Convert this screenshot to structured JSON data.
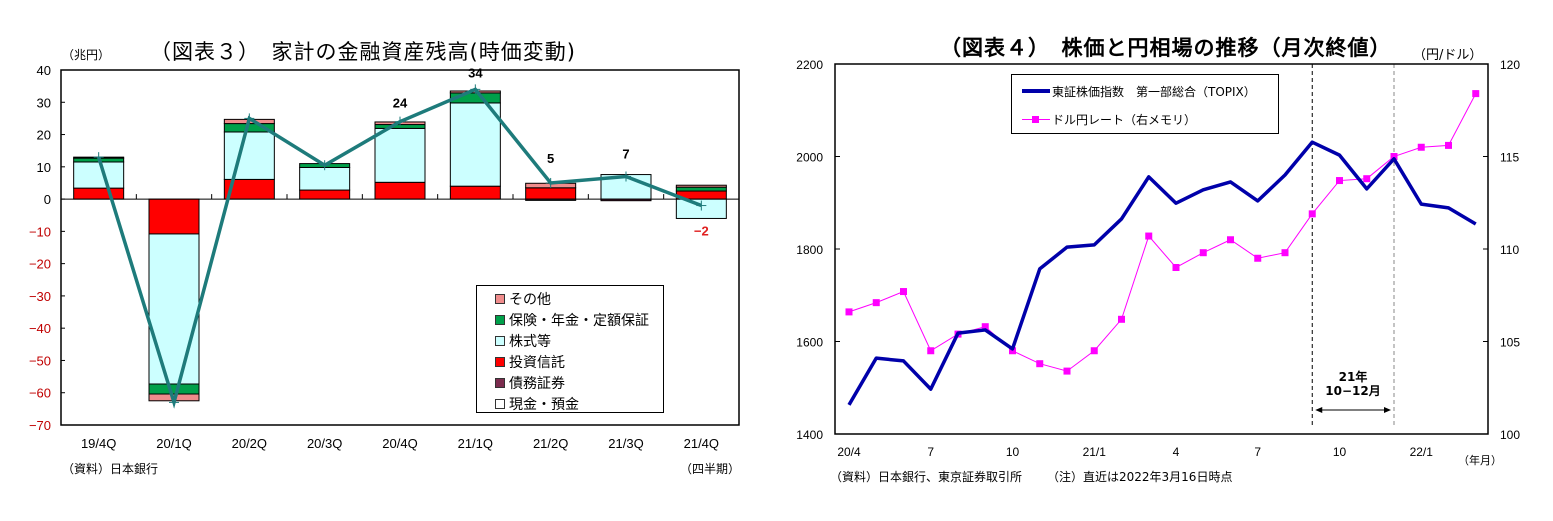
{
  "left": {
    "title": "（図表３）　家計の金融資産残高(時価変動)",
    "unit": "（兆円）",
    "source": "（資料）日本銀行",
    "period_label": "（四半期）"
  },
  "right": {
    "title": "（図表４）　株価と円相場の推移（月次終値）",
    "right_unit": "（円/ドル）",
    "xunit": "（年月）",
    "source": "（資料）日本銀行、東京証券取引所",
    "note": "（注）直近は2022年3月16日時点",
    "annotation_line1": "21年",
    "annotation_line2": "10−12月"
  },
  "chart_data": [
    {
      "type": "bar",
      "stacked": true,
      "title": "（図表３）　家計の金融資産残高(時価変動)",
      "ylabel": "（兆円）",
      "xlabel": "（四半期）",
      "ylim": [
        -70,
        40
      ],
      "yticks": [
        40,
        30,
        20,
        10,
        0,
        -10,
        -20,
        -30,
        -40,
        -50,
        -60,
        -70
      ],
      "categories": [
        "19/4Q",
        "20/1Q",
        "20/2Q",
        "20/3Q",
        "20/4Q",
        "21/1Q",
        "21/2Q",
        "21/3Q",
        "21/4Q"
      ],
      "series": [
        {
          "name": "現金・預金",
          "color": "#ffffff",
          "values": [
            0,
            0,
            0,
            0,
            0,
            0,
            0,
            0,
            0
          ]
        },
        {
          "name": "債務証券",
          "color": "#7b2c4e",
          "values": [
            0,
            0,
            0,
            0,
            0,
            0,
            -0.4,
            -0.5,
            0
          ]
        },
        {
          "name": "投資信託",
          "color": "#ff0000",
          "values": [
            3.4,
            -10.8,
            6.1,
            2.8,
            5.2,
            4.0,
            3.5,
            0,
            2.5
          ]
        },
        {
          "name": "株式等",
          "color": "#ccffff",
          "values": [
            8.1,
            -46.5,
            14.7,
            7.0,
            16.7,
            25.8,
            0,
            7.6,
            -6.0
          ]
        },
        {
          "name": "保険・年金・定額保証",
          "color": "#00a04a",
          "values": [
            1.2,
            -3.1,
            2.6,
            1.2,
            1.2,
            3.1,
            0,
            0,
            1.2
          ]
        },
        {
          "name": "その他",
          "color": "#f08c8c",
          "values": [
            0.3,
            -2.1,
            1.3,
            0,
            0.8,
            0.6,
            1.4,
            0,
            0.6
          ]
        }
      ],
      "total_line": {
        "name": "合計",
        "color": "#1e7b7b",
        "values": [
          13,
          -63,
          25,
          10.5,
          24,
          34,
          5,
          7,
          -2
        ]
      },
      "data_labels": [
        {
          "category": "20/4Q",
          "text": "24"
        },
        {
          "category": "21/1Q",
          "text": "34"
        },
        {
          "category": "21/2Q",
          "text": "5"
        },
        {
          "category": "21/3Q",
          "text": "7"
        },
        {
          "category": "21/4Q",
          "text": "−2",
          "color": "#e02020"
        }
      ],
      "legend": [
        "その他",
        "保険・年金・定額保証",
        "株式等",
        "投資信託",
        "債務証券",
        "現金・預金"
      ],
      "legend_position": "lower-right-inside"
    },
    {
      "type": "line",
      "title": "（図表４）　株価と円相場の推移（月次終値）",
      "xlabel": "（年月）",
      "ylabel_right": "（円/ドル）",
      "ylim": [
        1400,
        2200
      ],
      "ylim_right": [
        100,
        120
      ],
      "yticks": [
        2200,
        2000,
        1800,
        1600,
        1400
      ],
      "yticks_right": [
        120,
        115,
        110,
        105,
        100
      ],
      "x": [
        "20/4",
        "20/5",
        "20/6",
        "20/7",
        "20/8",
        "20/9",
        "20/10",
        "20/11",
        "20/12",
        "21/1",
        "21/2",
        "21/3",
        "21/4",
        "21/5",
        "21/6",
        "21/7",
        "21/8",
        "21/9",
        "21/10",
        "21/11",
        "21/12",
        "22/1",
        "22/2",
        "22/3"
      ],
      "xtick_labels": [
        {
          "index": 0,
          "label": "20/4"
        },
        {
          "index": 3,
          "label": "7"
        },
        {
          "index": 6,
          "label": "10"
        },
        {
          "index": 9,
          "label": "21/1"
        },
        {
          "index": 12,
          "label": "4"
        },
        {
          "index": 15,
          "label": "7"
        },
        {
          "index": 18,
          "label": "10"
        },
        {
          "index": 21,
          "label": "22/1"
        }
      ],
      "series": [
        {
          "name": "東証株価指数　第一部総合（TOPIX）",
          "axis": "left",
          "color": "#0000aa",
          "width": 3.5,
          "values": [
            1463,
            1564,
            1558,
            1497,
            1618,
            1625,
            1584,
            1757,
            1804,
            1809,
            1865,
            1956,
            1899,
            1928,
            1945,
            1904,
            1960,
            2031,
            2003,
            1930,
            1995,
            1897,
            1889,
            1854
          ]
        },
        {
          "name": "ドル円レート（右メモリ）",
          "axis": "right",
          "color": "#ff00ff",
          "marker": "square",
          "width": 1,
          "values": [
            106.6,
            107.1,
            107.7,
            104.5,
            105.4,
            105.8,
            104.5,
            103.8,
            103.4,
            104.5,
            106.2,
            110.7,
            109.0,
            109.8,
            110.5,
            109.5,
            109.8,
            111.9,
            113.7,
            113.8,
            115.0,
            115.5,
            115.6,
            118.4
          ]
        }
      ],
      "vlines": [
        {
          "index": 17,
          "style": "dashed",
          "color": "#000000"
        },
        {
          "index": 20,
          "style": "dashed",
          "color": "#888888"
        }
      ],
      "annotation": {
        "text": "21年 10−12月",
        "span": [
          17,
          20
        ]
      },
      "legend_position": "upper-right-inside"
    }
  ]
}
